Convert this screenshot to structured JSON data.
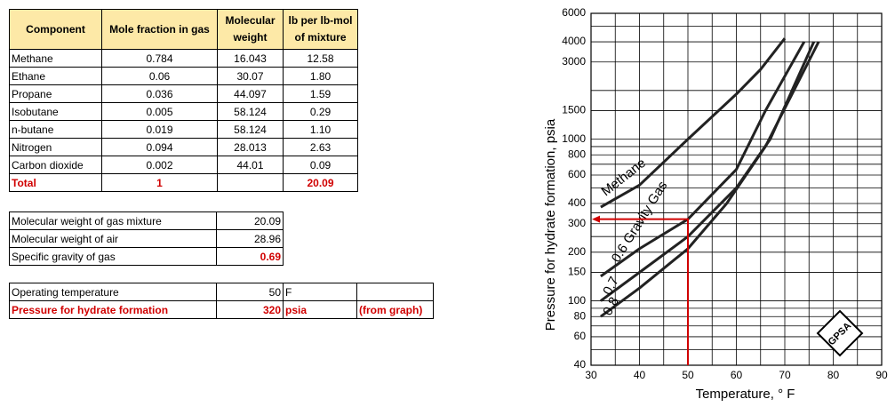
{
  "components_table": {
    "headers": [
      "Component",
      "Mole fraction in gas",
      "Molecular weight",
      "lb per lb-mol of mixture"
    ],
    "rows": [
      [
        "Methane",
        "0.784",
        "16.043",
        "12.58"
      ],
      [
        "Ethane",
        "0.06",
        "30.07",
        "1.80"
      ],
      [
        "Propane",
        "0.036",
        "44.097",
        "1.59"
      ],
      [
        "Isobutane",
        "0.005",
        "58.124",
        "0.29"
      ],
      [
        "n-butane",
        "0.019",
        "58.124",
        "1.10"
      ],
      [
        "Nitrogen",
        "0.094",
        "28.013",
        "2.63"
      ],
      [
        "Carbon dioxide",
        "0.002",
        "44.01",
        "0.09"
      ]
    ],
    "total": {
      "label": "Total",
      "mole_fraction": "1",
      "lb_per_lbmol": "20.09"
    }
  },
  "gravity_table": {
    "rows": [
      {
        "label": "Molecular weight of gas mixture",
        "value": "20.09"
      },
      {
        "label": "Molecular weight of air",
        "value": "28.96"
      },
      {
        "label": "Specific gravity of gas",
        "value": "0.69"
      }
    ]
  },
  "operating_table": {
    "rows": [
      {
        "label": "Operating temperature",
        "value": "50",
        "unit": "F"
      },
      {
        "label": "Pressure for hydrate formation",
        "value": "320",
        "unit": "psia",
        "note": "(from graph)"
      }
    ]
  },
  "graph": {
    "x_label": "Temperature, ° F",
    "y_label": "Pressure for hydrate formation, psia",
    "xlim": [
      30,
      90
    ],
    "ylim": [
      40,
      6000
    ],
    "log_y": true,
    "xticks": [
      30,
      40,
      50,
      60,
      70,
      80,
      90
    ],
    "x_grid": [
      30,
      35,
      40,
      45,
      50,
      55,
      60,
      65,
      70,
      75,
      80,
      85,
      90
    ],
    "yticks": [
      40,
      60,
      80,
      100,
      150,
      200,
      300,
      400,
      600,
      800,
      1000,
      1500,
      3000,
      4000,
      6000
    ],
    "y_grid": [
      40,
      50,
      60,
      70,
      80,
      90,
      100,
      150,
      200,
      250,
      300,
      350,
      400,
      500,
      600,
      700,
      800,
      900,
      1000,
      1500,
      2000,
      3000,
      4000,
      5000,
      6000
    ],
    "curves": [
      {
        "name": "Methane",
        "x": [
          32,
          40,
          50,
          60,
          65,
          70
        ],
        "y": [
          380,
          520,
          1000,
          1900,
          2700,
          4200
        ]
      },
      {
        "name": "0.6 Gravity Gas",
        "x": [
          32,
          40,
          50,
          60,
          66,
          74
        ],
        "y": [
          142,
          210,
          320,
          650,
          1500,
          4000
        ]
      },
      {
        "name": "0.7",
        "x": [
          32,
          40,
          50,
          60,
          67,
          76
        ],
        "y": [
          100,
          150,
          250,
          500,
          1000,
          4000
        ]
      },
      {
        "name": "0.8",
        "x": [
          32,
          40,
          50,
          58,
          66,
          77
        ],
        "y": [
          80,
          120,
          210,
          400,
          900,
          4000
        ]
      }
    ],
    "reading": {
      "x": 50,
      "y": 320
    },
    "logo": "GPSA"
  }
}
